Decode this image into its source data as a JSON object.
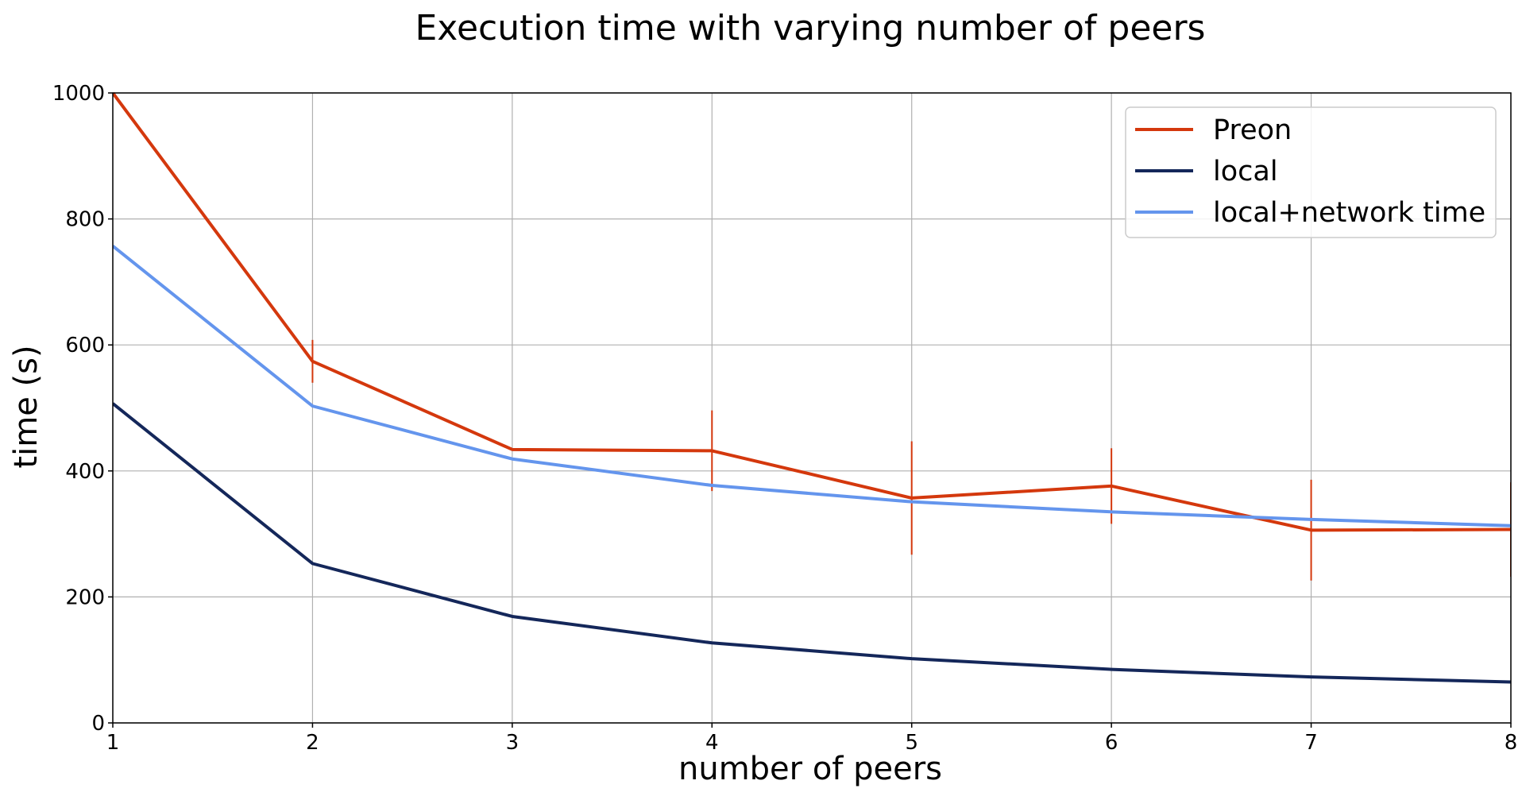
{
  "chart_data": {
    "type": "line",
    "title": "Execution time with varying number of peers",
    "xlabel": "number of peers",
    "ylabel": "time (s)",
    "x": [
      1,
      2,
      3,
      4,
      5,
      6,
      7,
      8
    ],
    "xlim": [
      1,
      8
    ],
    "ylim": [
      0,
      1000
    ],
    "xticks": [
      "1",
      "2",
      "3",
      "4",
      "5",
      "6",
      "7",
      "8"
    ],
    "yticks": [
      "0",
      "200",
      "400",
      "600",
      "800",
      "1000"
    ],
    "grid": true,
    "legend_position": "top-right",
    "series": [
      {
        "name": "Preon",
        "color": "#d4380d",
        "values": [
          1000,
          574,
          434,
          432,
          357,
          376,
          306,
          307
        ],
        "error": [
          0,
          34,
          0,
          64,
          90,
          60,
          80,
          75
        ]
      },
      {
        "name": "local",
        "color": "#14275a",
        "values": [
          507,
          253,
          169,
          127,
          102,
          85,
          73,
          65
        ]
      },
      {
        "name": "local+network time",
        "color": "#6495ed",
        "values": [
          757,
          503,
          419,
          377,
          351,
          335,
          323,
          313
        ]
      }
    ]
  }
}
